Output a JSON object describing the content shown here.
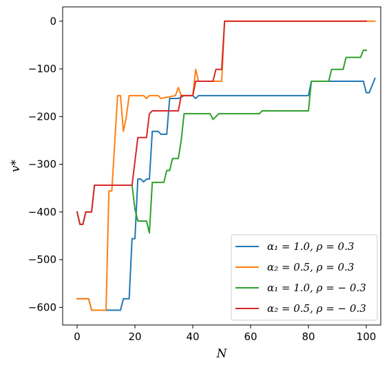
{
  "chart_data": {
    "type": "line",
    "xlabel": "N",
    "ylabel": "v*",
    "xlim": [
      -5,
      105
    ],
    "ylim": [
      -637,
      30
    ],
    "xticks": [
      "0",
      "20",
      "40",
      "60",
      "80",
      "100"
    ],
    "yticks": [
      "0",
      "−100",
      "−200",
      "−300",
      "−400",
      "−500",
      "−600"
    ],
    "legend_position": "lower-right",
    "grid": false,
    "series": [
      {
        "name": "α₁ = 1.0, ρ = 0.3",
        "color": "#1f77b4",
        "x": [
          0,
          4,
          5,
          15,
          16,
          18,
          19,
          20,
          21,
          22,
          23,
          24,
          25,
          26,
          28,
          29,
          31,
          32,
          35,
          37,
          40,
          41,
          42,
          80,
          81,
          99,
          100,
          101,
          103
        ],
        "y": [
          -582,
          -582,
          -606,
          -606,
          -582,
          -582,
          -456,
          -456,
          -331,
          -331,
          -337,
          -331,
          -331,
          -231,
          -231,
          -237,
          -237,
          -162,
          -162,
          -156,
          -156,
          -162,
          -156,
          -156,
          -126,
          -126,
          -150,
          -150,
          -120
        ]
      },
      {
        "name": "α₂ = 0.5, ρ = 0.3",
        "color": "#ff7f0e",
        "x": [
          0,
          4,
          5,
          10,
          11,
          12,
          14,
          15,
          16,
          17,
          18,
          20,
          23,
          24,
          25,
          28,
          29,
          34,
          35,
          36,
          40,
          41,
          42,
          43,
          50,
          51,
          103
        ],
        "y": [
          -582,
          -582,
          -606,
          -606,
          -356,
          -356,
          -156,
          -156,
          -231,
          -201,
          -156,
          -156,
          -156,
          -162,
          -156,
          -156,
          -162,
          -156,
          -139,
          -156,
          -156,
          -101,
          -126,
          -126,
          -126,
          0,
          0
        ]
      },
      {
        "name": "α₁ = 1.0, ρ = − 0.3",
        "color": "#2ca02c",
        "x": [
          0,
          1,
          2,
          3,
          5,
          6,
          19,
          20,
          21,
          24,
          25,
          26,
          30,
          31,
          32,
          33,
          35,
          36,
          37,
          46,
          47,
          48,
          49,
          63,
          64,
          80,
          81,
          87,
          88,
          92,
          93,
          98,
          99,
          100
        ],
        "y": [
          -400,
          -426,
          -426,
          -400,
          -400,
          -344,
          -344,
          -394,
          -419,
          -419,
          -444,
          -338,
          -338,
          -313,
          -313,
          -288,
          -288,
          -250,
          -194,
          -194,
          -206,
          -200,
          -194,
          -194,
          -188,
          -188,
          -126,
          -126,
          -101,
          -101,
          -76,
          -76,
          -61,
          -61
        ]
      },
      {
        "name": "α₂ = 0.5, ρ = − 0.3",
        "color": "#d62728",
        "x": [
          0,
          1,
          2,
          3,
          5,
          6,
          19,
          20,
          21,
          24,
          25,
          26,
          35,
          36,
          40,
          41,
          47,
          48,
          50,
          51,
          100
        ],
        "y": [
          -400,
          -426,
          -426,
          -400,
          -400,
          -344,
          -344,
          -294,
          -244,
          -244,
          -194,
          -188,
          -188,
          -156,
          -156,
          -126,
          -126,
          -101,
          -101,
          0,
          0
        ]
      }
    ]
  }
}
